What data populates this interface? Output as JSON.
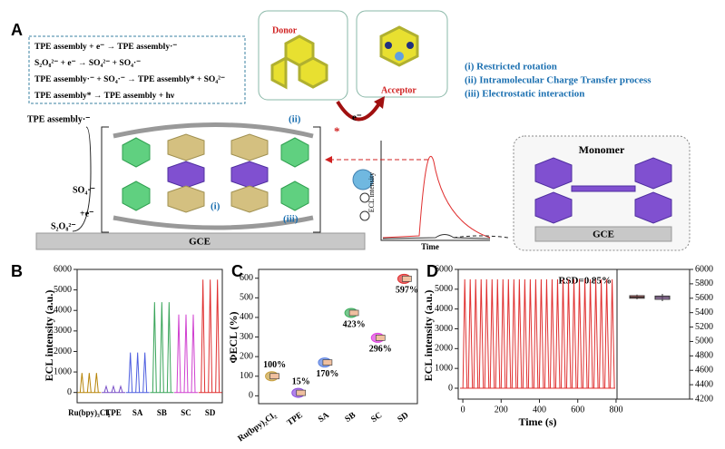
{
  "panel_a": {
    "label": "A",
    "equations": [
      "TPE assembly + e⁻ → TPE assembly·⁻",
      "S₂O₈²⁻ + e⁻ → SO₄²⁻ + SO₄·⁻",
      "TPE assembly·⁻ + SO₄·⁻ → TPE assembly* + SO₄²⁻",
      "TPE assembly* → TPE assembly + hν"
    ],
    "donor": "Donor",
    "acceptor": "Acceptor",
    "electron": "e⁻",
    "mechanisms": [
      "(i) Restricted rotation",
      "(ii) Intramolecular Charge Transfer process",
      "(iii) Electrostatic interaction"
    ],
    "radical_label": "TPE assembly·⁻",
    "so4_label": "SO₄·⁻",
    "plus_e": "+e⁻",
    "s2o8_label": "S₂O₈²⁻",
    "site_labels": [
      "(i)",
      "(ii)",
      "(iii)"
    ],
    "electrode": "GCE",
    "star": "*",
    "inset_ylabel": "ECL intensity",
    "inset_xlabel": "Time",
    "monomer": "Monomer",
    "monomer_electrode": "GCE"
  },
  "chart_data": [
    {
      "type": "spikes",
      "panel": "B",
      "ylabel": "ECL intensity (a.u.)",
      "categories": [
        "Ru(bpy)₃Cl₂",
        "TPE",
        "SA",
        "SB",
        "SC",
        "SD"
      ],
      "values": [
        [
          950,
          950,
          950
        ],
        [
          300,
          300,
          300
        ],
        [
          1950,
          1950,
          1950
        ],
        [
          4400,
          4400,
          4400
        ],
        [
          3800,
          3800,
          3800
        ],
        [
          5500,
          5500,
          5500
        ]
      ],
      "colors": [
        "#b8860b",
        "#7b52c8",
        "#4f5fe0",
        "#3aa55a",
        "#d040d0",
        "#e03030"
      ],
      "ylim": [
        -500,
        6000
      ],
      "yticks": [
        0,
        1000,
        2000,
        3000,
        4000,
        5000,
        6000
      ]
    },
    {
      "type": "points",
      "panel": "C",
      "ylabel": "ΦECL (%)",
      "categories": [
        "Ru(bpy)₂Cl₂",
        "TPE",
        "SA",
        "SB",
        "SC",
        "SD"
      ],
      "values": [
        100,
        15,
        170,
        423,
        296,
        597
      ],
      "value_labels": [
        "100%",
        "15%",
        "170%",
        "423%",
        "296%",
        "597%"
      ],
      "colors": [
        "#c8a040",
        "#9050e0",
        "#5a80e0",
        "#40b060",
        "#e040e0",
        "#e03030"
      ],
      "ylim": [
        -40,
        645
      ],
      "yticks": [
        0,
        100,
        200,
        300,
        400,
        500,
        600
      ]
    },
    {
      "type": "line",
      "panel": "D",
      "ylabel": "ECL intensity (a.u.)",
      "xlabel": "Time (s)",
      "annotation": "RSD=0.85%",
      "color": "#e03030",
      "x": [
        10,
        38.5,
        67,
        95.5,
        124,
        152.5,
        181,
        209.5,
        238,
        266.5,
        295,
        323.5,
        352,
        380.5,
        409,
        437.5,
        466,
        494.5,
        523,
        551.5,
        580,
        608.5,
        637,
        665.5,
        694,
        722.5,
        751,
        779.5
      ],
      "values": [
        5500,
        5500,
        5500,
        5500,
        5500,
        5500,
        5500,
        5500,
        5500,
        5500,
        5500,
        5500,
        5500,
        5500,
        5500,
        5500,
        5500,
        5500,
        5500,
        5500,
        5500,
        5500,
        5500,
        5500,
        5500,
        5500,
        5500,
        5500
      ],
      "xlim": [
        -24,
        805
      ],
      "xticks": [
        0,
        200,
        400,
        600,
        800
      ],
      "ylim": [
        -550,
        6000
      ],
      "yticks": [
        0,
        1000,
        2000,
        3000,
        4000,
        5000,
        6000
      ],
      "y2lim": [
        4200,
        6000
      ],
      "y2ticks": [
        4200,
        4400,
        4600,
        4800,
        5000,
        5200,
        5400,
        5600,
        5800,
        6000
      ],
      "boxes": [
        {
          "color": "#e03030",
          "whisker_low": 5585,
          "q1": 5600,
          "median": 5615,
          "q3": 5635,
          "whisker_high": 5650
        },
        {
          "color": "#b060d0",
          "whisker_low": 5560,
          "q1": 5585,
          "median": 5610,
          "q3": 5630,
          "whisker_high": 5660
        }
      ]
    }
  ]
}
